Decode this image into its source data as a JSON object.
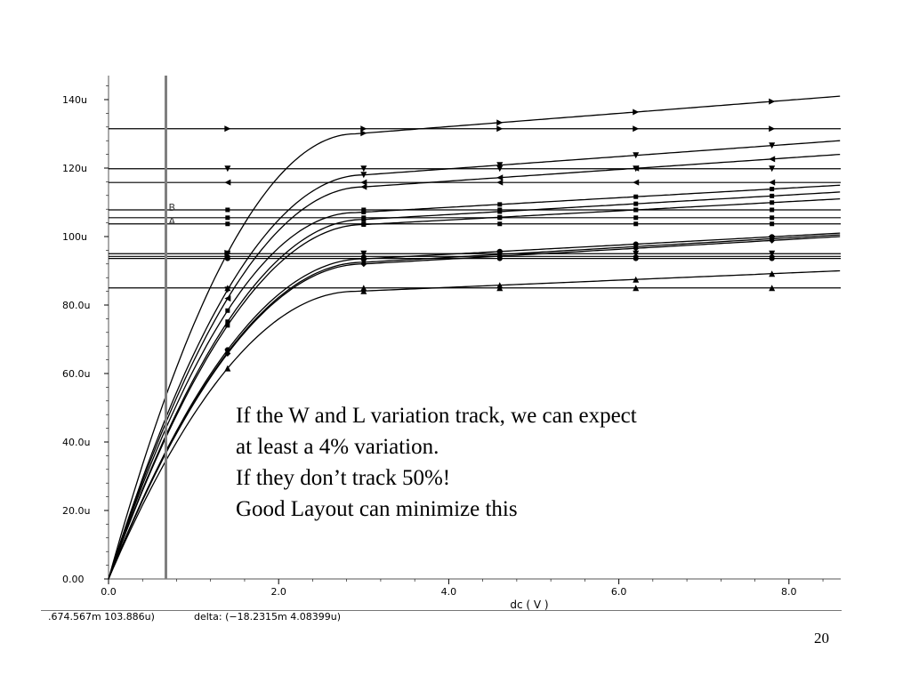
{
  "chart_data": {
    "type": "line",
    "xlabel": "dc ( V )",
    "xlim": [
      0,
      8.6
    ],
    "ylim": [
      0,
      145
    ],
    "x_ticks": [
      {
        "v": 0,
        "label": "0.0"
      },
      {
        "v": 2,
        "label": "2.0"
      },
      {
        "v": 4,
        "label": "4.0"
      },
      {
        "v": 6,
        "label": "6.0"
      },
      {
        "v": 8,
        "label": "8.0"
      }
    ],
    "y_ticks": [
      {
        "v": 0,
        "label": "0.00"
      },
      {
        "v": 20,
        "label": "20.0u"
      },
      {
        "v": 40,
        "label": "40.0u"
      },
      {
        "v": 60,
        "label": "60.0u"
      },
      {
        "v": 80,
        "label": "80.0u"
      },
      {
        "v": 100,
        "label": "100u"
      },
      {
        "v": 120,
        "label": "120u"
      },
      {
        "v": 140,
        "label": "140u"
      }
    ],
    "marker_x": [
      1.4,
      3.0,
      4.6,
      6.2,
      7.8
    ],
    "curves": [
      {
        "marker": "tri-right",
        "sat": 130.0,
        "vknee": 2.9,
        "end": 141.0
      },
      {
        "marker": "tri-down",
        "sat": 118.0,
        "vknee": 3.0,
        "end": 128.0
      },
      {
        "marker": "tri-left",
        "sat": 114.5,
        "vknee": 3.0,
        "end": 124.0
      },
      {
        "marker": "square",
        "sat": 107.0,
        "vknee": 2.9,
        "end": 115.0
      },
      {
        "marker": "square",
        "sat": 105.0,
        "vknee": 3.0,
        "end": 113.0
      },
      {
        "marker": "square",
        "sat": 103.5,
        "vknee": 3.0,
        "end": 111.0
      },
      {
        "marker": "circle",
        "sat": 93.5,
        "vknee": 3.0,
        "end": 101.0
      },
      {
        "marker": "tri-down",
        "sat": 92.5,
        "vknee": 3.0,
        "end": 100.5
      },
      {
        "marker": "diamond",
        "sat": 92.0,
        "vknee": 3.0,
        "end": 100.0
      },
      {
        "marker": "tri-up",
        "sat": 84.0,
        "vknee": 2.9,
        "end": 90.0
      }
    ],
    "hlines": [
      {
        "y": 131.5,
        "marker": "tri-right"
      },
      {
        "y": 119.8,
        "marker": "tri-down"
      },
      {
        "y": 115.8,
        "marker": "tri-left"
      },
      {
        "y": 107.8,
        "marker": "square"
      },
      {
        "y": 105.5,
        "marker": "square"
      },
      {
        "y": 103.7,
        "marker": "square"
      },
      {
        "y": 95.0,
        "marker": "tri-down"
      },
      {
        "y": 94.2,
        "marker": "diamond"
      },
      {
        "y": 93.6,
        "marker": "circle"
      },
      {
        "y": 85.0,
        "marker": "tri-up"
      }
    ],
    "cursor": {
      "x": 0.6746,
      "labels": [
        "B",
        "A"
      ],
      "label_y": [
        108.6,
        104.6
      ]
    }
  },
  "overlay": {
    "lines": [
      "If the W and L variation track, we can expect",
      "at least a 4% variation.",
      "If they don’t track 50%!",
      "Good Layout can minimize this"
    ]
  },
  "status": {
    "cursor_readout": ".674.567m 103.886u)",
    "delta": "delta: (−18.2315m 4.08399u)"
  },
  "slide_number": "20",
  "colors": {
    "ink": "#000000",
    "axis": "#555555",
    "cursor": "#7f7f7f"
  }
}
